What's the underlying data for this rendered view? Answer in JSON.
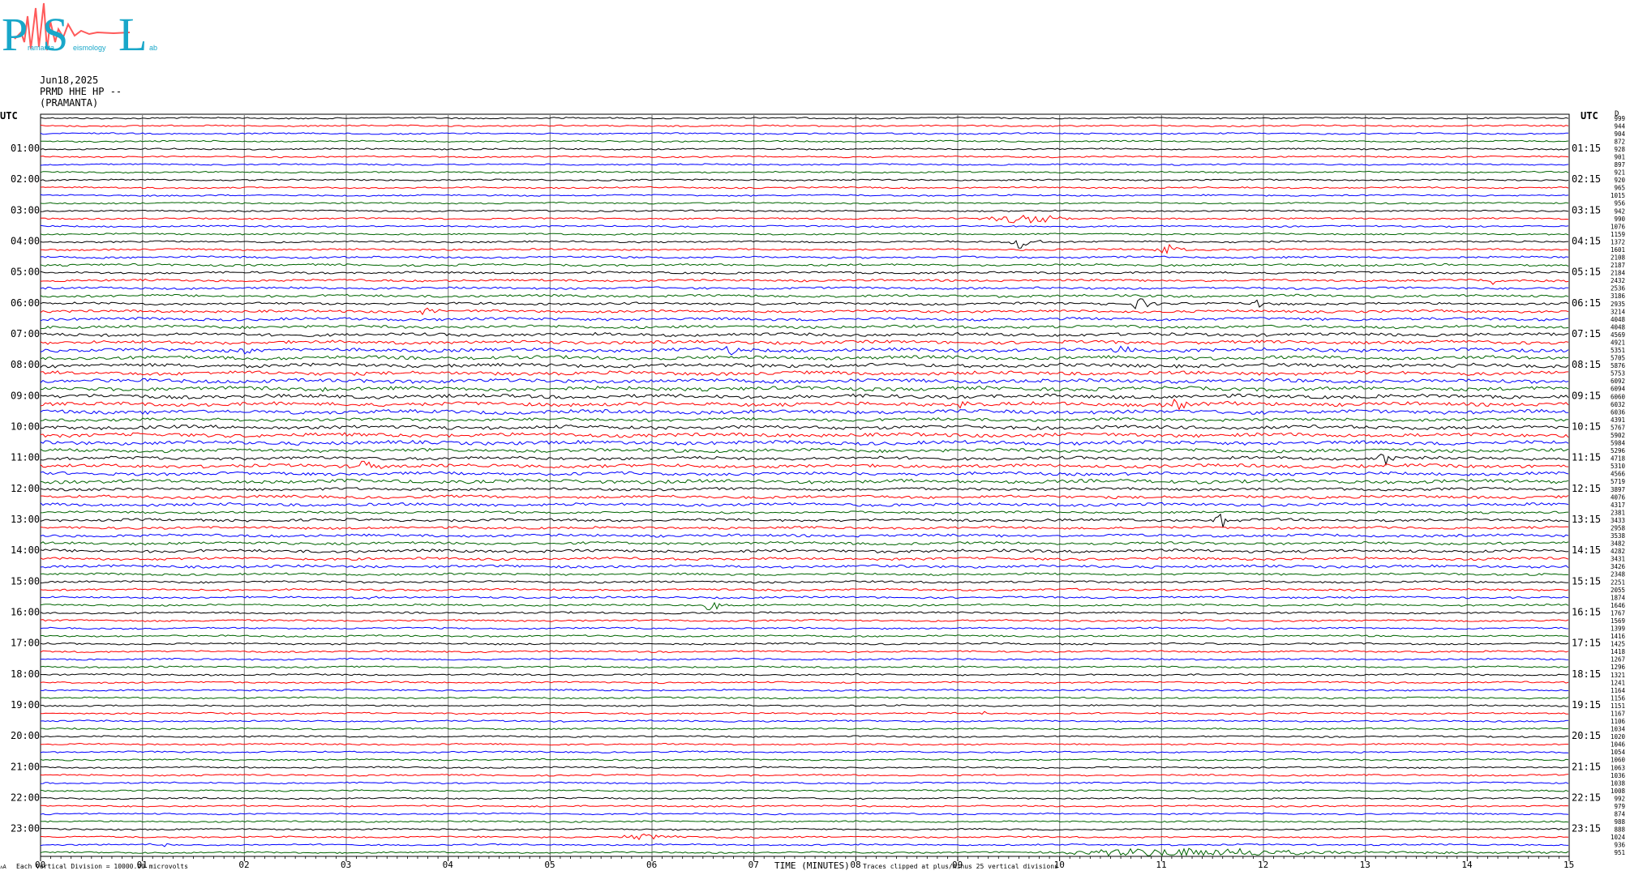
{
  "logo": {
    "letters": [
      "P",
      "S",
      "L"
    ],
    "subtitle_words": [
      "ramanta",
      "eismology",
      "ab"
    ],
    "colors": {
      "letters": "#19a7c9",
      "trace": "#ff5a5a"
    }
  },
  "header": {
    "date": "Jun18,2025",
    "channel": "PRMD HHE HP --",
    "station": "(PRAMANTA)"
  },
  "footer": {
    "left_note": "Each Vertical Division = 10000.00 microvolts",
    "left_mark": "ᴧA",
    "xlabel": "TIME (MINUTES)",
    "right_note": "Traces clipped at plus/minus 25 vertical divisions"
  },
  "chart_data": {
    "type": "line",
    "title": "",
    "xlabel": "TIME (MINUTES)",
    "ylabel": "",
    "xlim": [
      0,
      15
    ],
    "x_ticks": [
      "00",
      "01",
      "02",
      "03",
      "04",
      "05",
      "06",
      "07",
      "08",
      "09",
      "10",
      "11",
      "12",
      "13",
      "14",
      "15"
    ],
    "left_axis_title": "UTC",
    "right_axis_title": "UTC",
    "left_labels": [
      "01:00",
      "02:00",
      "03:00",
      "04:00",
      "05:00",
      "06:00",
      "07:00",
      "08:00",
      "09:00",
      "10:00",
      "11:00",
      "12:00",
      "13:00",
      "14:00",
      "15:00",
      "16:00",
      "17:00",
      "18:00",
      "19:00",
      "20:00",
      "21:00",
      "22:00",
      "23:00"
    ],
    "right_labels": [
      "01:15",
      "02:15",
      "03:15",
      "04:15",
      "05:15",
      "06:15",
      "07:15",
      "08:15",
      "09:15",
      "10:15",
      "11:15",
      "12:15",
      "13:15",
      "14:15",
      "15:15",
      "16:15",
      "17:15",
      "18:15",
      "19:15",
      "20:15",
      "21:15",
      "22:15",
      "23:15"
    ],
    "trace_colors": [
      "#000000",
      "#ff0000",
      "#0000ff",
      "#006400"
    ],
    "trace_count": 96,
    "right_column_head": "D",
    "rms_values": [
      "999",
      "944",
      "904",
      "872",
      "928",
      "901",
      "897",
      "921",
      "920",
      "965",
      "1015",
      "956",
      "942",
      "990",
      "1076",
      "1159",
      "1372",
      "1601",
      "2108",
      "2187",
      "2184",
      "2432",
      "2536",
      "3186",
      "2935",
      "3214",
      "4048",
      "4048",
      "4569",
      "4921",
      "5351",
      "5705",
      "5876",
      "5753",
      "6092",
      "6094",
      "6060",
      "6032",
      "6036",
      "4391",
      "5767",
      "5902",
      "5984",
      "5296",
      "4718",
      "5310",
      "4566",
      "5719",
      "3897",
      "4076",
      "4317",
      "2381",
      "3433",
      "2958",
      "3538",
      "3482",
      "4282",
      "3431",
      "3426",
      "2348",
      "2251",
      "2055",
      "1874",
      "1646",
      "1767",
      "1569",
      "1399",
      "1416",
      "1425",
      "1418",
      "1267",
      "1296",
      "1321",
      "1241",
      "1164",
      "1156",
      "1151",
      "1167",
      "1106",
      "1034",
      "1020",
      "1046",
      "1054",
      "1060",
      "1063",
      "1036",
      "1038",
      "1008",
      "992",
      "979",
      "874",
      "988",
      "888",
      "1024",
      "936",
      "951"
    ],
    "events": [
      {
        "trace": 13,
        "start_min": 9.2,
        "end_min": 10.9,
        "amp": 6
      },
      {
        "trace": 16,
        "start_min": 9.5,
        "end_min": 9.9,
        "amp": 11
      },
      {
        "trace": 17,
        "start_min": 10.9,
        "end_min": 11.4,
        "amp": 7
      },
      {
        "trace": 21,
        "start_min": 14.2,
        "end_min": 14.4,
        "amp": 5
      },
      {
        "trace": 24,
        "start_min": 10.7,
        "end_min": 11.0,
        "amp": 12
      },
      {
        "trace": 24,
        "start_min": 11.9,
        "end_min": 12.1,
        "amp": 7
      },
      {
        "trace": 25,
        "start_min": 3.7,
        "end_min": 4.0,
        "amp": 7
      },
      {
        "trace": 30,
        "start_min": 1.9,
        "end_min": 2.2,
        "amp": 5
      },
      {
        "trace": 30,
        "start_min": 6.7,
        "end_min": 6.9,
        "amp": 11
      },
      {
        "trace": 30,
        "start_min": 10.5,
        "end_min": 10.9,
        "amp": 7
      },
      {
        "trace": 32,
        "start_min": 13.7,
        "end_min": 14.4,
        "amp": 4
      },
      {
        "trace": 35,
        "start_min": 2.7,
        "end_min": 3.0,
        "amp": 4
      },
      {
        "trace": 37,
        "start_min": 9.0,
        "end_min": 9.2,
        "amp": 8
      },
      {
        "trace": 37,
        "start_min": 11.0,
        "end_min": 11.8,
        "amp": 7
      },
      {
        "trace": 45,
        "start_min": 3.1,
        "end_min": 3.4,
        "amp": 10
      },
      {
        "trace": 44,
        "start_min": 13.1,
        "end_min": 13.3,
        "amp": 16
      },
      {
        "trace": 52,
        "start_min": 11.5,
        "end_min": 11.8,
        "amp": 11
      },
      {
        "trace": 62,
        "start_min": 3.2,
        "end_min": 3.4,
        "amp": 4
      },
      {
        "trace": 63,
        "start_min": 6.5,
        "end_min": 6.8,
        "amp": 10
      },
      {
        "trace": 77,
        "start_min": 9.2,
        "end_min": 9.4,
        "amp": 3
      },
      {
        "trace": 93,
        "start_min": 5.6,
        "end_min": 6.8,
        "amp": 4
      },
      {
        "trace": 94,
        "start_min": 1.0,
        "end_min": 1.6,
        "amp": 3
      },
      {
        "trace": 95,
        "start_min": 9.8,
        "end_min": 14.8,
        "amp": 6
      }
    ],
    "grid": true,
    "legend": "none"
  }
}
